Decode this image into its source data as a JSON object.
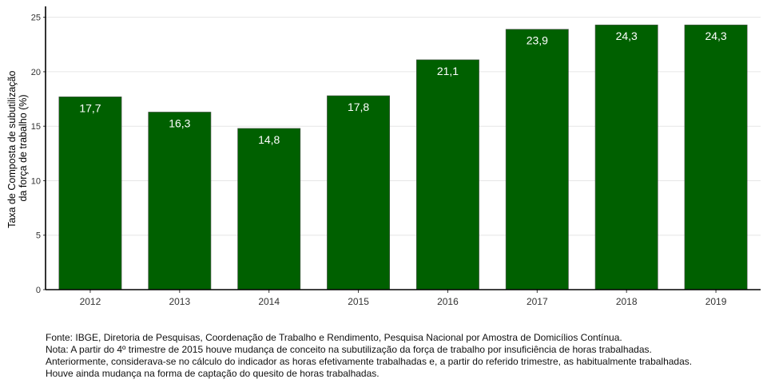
{
  "chart_data": {
    "type": "bar",
    "categories": [
      "2012",
      "2013",
      "2014",
      "2015",
      "2016",
      "2017",
      "2018",
      "2019"
    ],
    "values": [
      17.7,
      16.3,
      14.8,
      17.8,
      21.1,
      23.9,
      24.3,
      24.3
    ],
    "value_labels": [
      "17,7",
      "16,3",
      "14,8",
      "17,8",
      "21,1",
      "23,9",
      "24,3",
      "24,3"
    ],
    "ylabel_lines": [
      "Taxa de Composta de subutilização",
      "da força de trabalho (%)"
    ],
    "xlabel": "",
    "ylim": [
      0,
      26
    ],
    "yticks": [
      0,
      5,
      10,
      15,
      20,
      25
    ],
    "grid": true,
    "legend": "none",
    "bar_color": "#006000"
  },
  "caption": {
    "source": "Fonte: IBGE, Diretoria de Pesquisas, Coordenação de Trabalho e Rendimento, Pesquisa Nacional por Amostra de Domicílios Contínua.",
    "note_lines": [
      "Nota: A partir do 4º trimestre de 2015 houve mudança de conceito na subutilização da força de trabalho por insuficiência de horas trabalhadas.",
      "Anteriormente, considerava-se no cálculo do indicador as horas efetivamente trabalhadas e, a partir do referido trimestre, as habitualmente trabalhadas.",
      "Houve ainda mudança na forma de captação do quesito de horas trabalhadas."
    ]
  }
}
